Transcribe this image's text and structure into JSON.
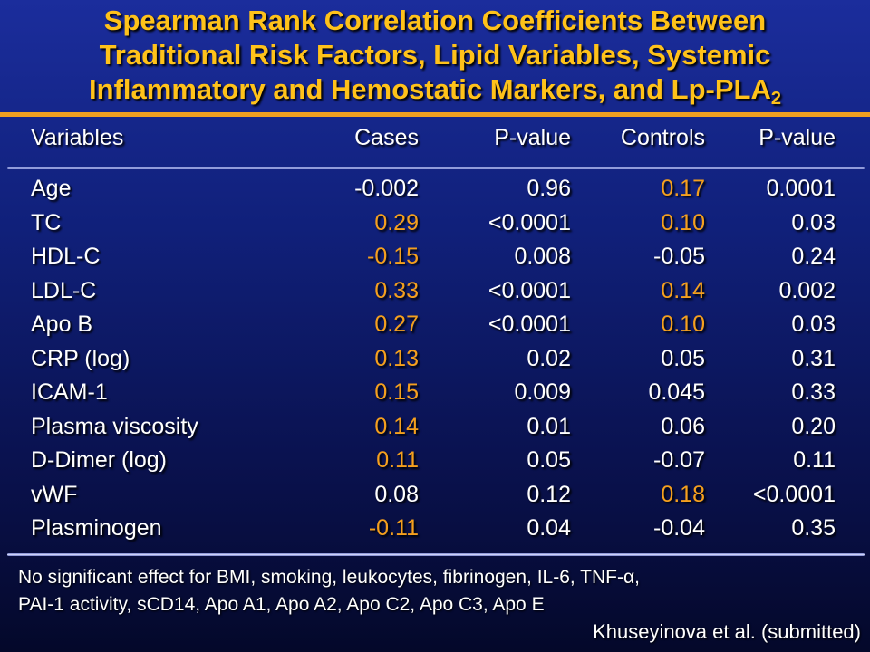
{
  "title": {
    "line1": "Spearman Rank Correlation Coefficients Between",
    "line2": "Traditional Risk Factors, Lipid Variables, Systemic",
    "line3_main": "Inflammatory and Hemostatic Markers, and Lp-PLA",
    "line3_sub": "2"
  },
  "colors": {
    "highlight": "#f5a01e",
    "normal": "#ffffff",
    "title": "#ffc21a",
    "rule": "#f0a020"
  },
  "table": {
    "headers": [
      "Variables",
      "Cases",
      "P-value",
      "Controls",
      "P-value"
    ],
    "rows": [
      {
        "label": "Age",
        "cases": "-0.002",
        "cases_p": "0.96",
        "controls": "0.17",
        "controls_p": "0.0001",
        "cases_hl": false,
        "controls_hl": true
      },
      {
        "label": "TC",
        "cases": "0.29",
        "cases_p": "<0.0001",
        "controls": "0.10",
        "controls_p": "0.03",
        "cases_hl": true,
        "controls_hl": true
      },
      {
        "label": "HDL-C",
        "cases": "-0.15",
        "cases_p": "0.008",
        "controls": "-0.05",
        "controls_p": "0.24",
        "cases_hl": true,
        "controls_hl": false
      },
      {
        "label": "LDL-C",
        "cases": "0.33",
        "cases_p": "<0.0001",
        "controls": "0.14",
        "controls_p": "0.002",
        "cases_hl": true,
        "controls_hl": true
      },
      {
        "label": "Apo B",
        "cases": "0.27",
        "cases_p": "<0.0001",
        "controls": "0.10",
        "controls_p": "0.03",
        "cases_hl": true,
        "controls_hl": true
      },
      {
        "label": "CRP (log)",
        "cases": "0.13",
        "cases_p": "0.02",
        "controls": "0.05",
        "controls_p": "0.31",
        "cases_hl": true,
        "controls_hl": false
      },
      {
        "label": "ICAM-1",
        "cases": "0.15",
        "cases_p": "0.009",
        "controls": "0.045",
        "controls_p": "0.33",
        "cases_hl": true,
        "controls_hl": false
      },
      {
        "label": "Plasma viscosity",
        "cases": "0.14",
        "cases_p": "0.01",
        "controls": "0.06",
        "controls_p": "0.20",
        "cases_hl": true,
        "controls_hl": false
      },
      {
        "label": "D-Dimer (log)",
        "cases": "0.11",
        "cases_p": "0.05",
        "controls": "-0.07",
        "controls_p": "0.11",
        "cases_hl": true,
        "controls_hl": false
      },
      {
        "label": "vWF",
        "cases": "0.08",
        "cases_p": "0.12",
        "controls": "0.18",
        "controls_p": "<0.0001",
        "cases_hl": false,
        "controls_hl": true
      },
      {
        "label": "Plasminogen",
        "cases": "-0.11",
        "cases_p": "0.04",
        "controls": "-0.04",
        "controls_p": "0.35",
        "cases_hl": true,
        "controls_hl": false
      }
    ]
  },
  "footnote": {
    "line1": "No significant effect for  BMI, smoking, leukocytes, fibrinogen, IL-6, TNF-α,",
    "line2": "PAI-1 activity, sCD14, Apo A1, Apo A2, Apo C2, Apo C3, Apo E"
  },
  "citation": "Khuseyinova et al. (submitted)"
}
